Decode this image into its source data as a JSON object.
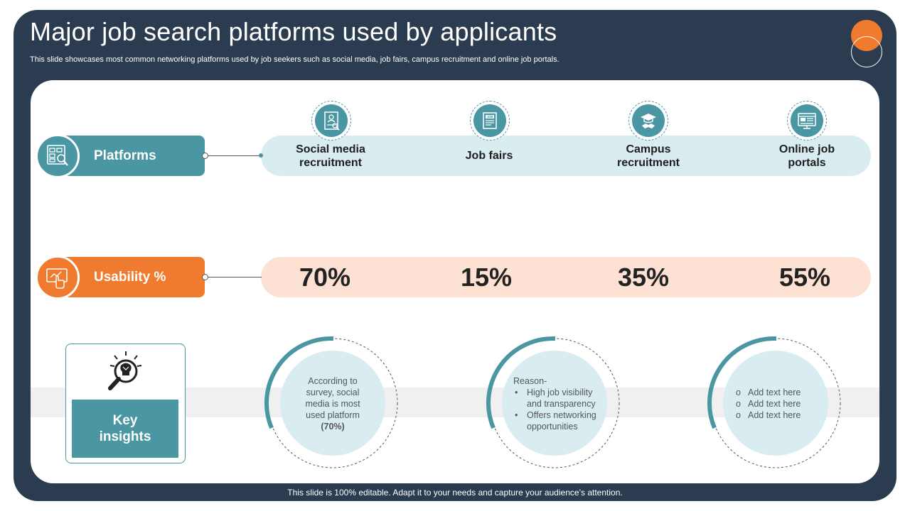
{
  "slide": {
    "title": "Major job search platforms used by applicants",
    "subtitle": "This slide showcases most common networking platforms used by job seekers such as social media, job fairs, campus recruitment and online job portals.",
    "footer": "This slide is 100% editable. Adapt it to your needs and capture your audience’s attention."
  },
  "rows": {
    "platforms_label": "Platforms",
    "usability_label": "Usability %"
  },
  "platforms": [
    {
      "line1": "Social media",
      "line2": "recruitment",
      "icon": "resume-icon",
      "usability": "70%"
    },
    {
      "line1": "Job fairs",
      "line2": "",
      "icon": "job-document-icon",
      "usability": "15%"
    },
    {
      "line1": "Campus",
      "line2": "recruitment",
      "icon": "graduation-handshake-icon",
      "usability": "35%"
    },
    {
      "line1": "Online job",
      "line2": "portals",
      "icon": "web-portal-icon",
      "usability": "55%"
    }
  ],
  "insights": {
    "label_line1": "Key",
    "label_line2": "insights",
    "icon": "lightbulb-magnifier-icon",
    "circle1": {
      "line1": "According to",
      "line2": "survey, social",
      "line3": "media is most",
      "line4": "used platform",
      "line5": "(70%)"
    },
    "circle2": {
      "heading": "Reason-",
      "bullets": [
        "High job visibility",
        "and transparency",
        "Offers networking",
        "opportunities"
      ]
    },
    "circle3": {
      "items": [
        "Add text here",
        "Add text here",
        "Add text here"
      ]
    }
  },
  "colors": {
    "frame": "#2b3c50",
    "teal": "#4a96a3",
    "orange": "#f07a2e",
    "teal_band": "#d9ecef",
    "peach_band": "#fde2d4",
    "circle_fill": "#d9ecef"
  }
}
